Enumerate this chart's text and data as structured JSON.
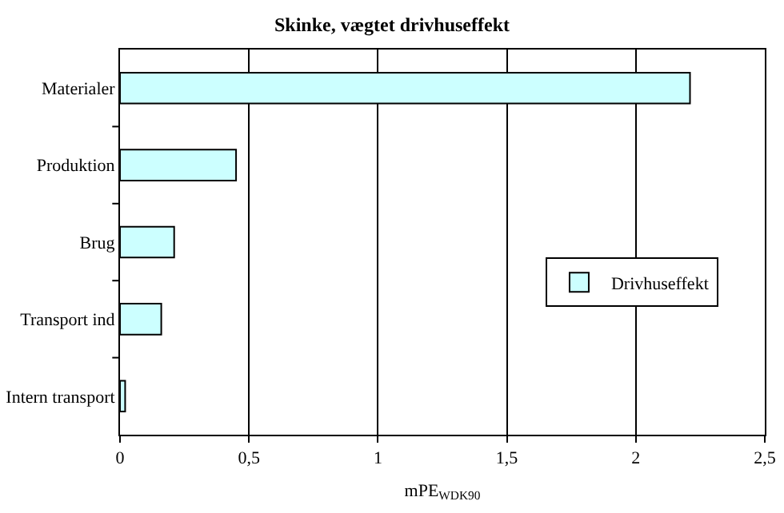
{
  "chart_data": {
    "type": "bar",
    "orientation": "horizontal",
    "title": "Skinke, vægtet drivhuseffekt",
    "xlabel": "mPE$_{WDK90}$",
    "categories": [
      "Materialer",
      "Produktion",
      "Brug",
      "Transport ind",
      "Intern transport"
    ],
    "series": [
      {
        "name": "Drivhuseffekt",
        "color": "#ccffff",
        "values": [
          2.21,
          0.45,
          0.21,
          0.16,
          0.02
        ]
      }
    ],
    "xlim": [
      0,
      2.5
    ],
    "xticks": [
      0,
      {
        "value": 0.5,
        "label": "0,5"
      },
      1,
      {
        "value": 1.5,
        "label": "1,5"
      },
      2,
      {
        "value": 2.5,
        "label": "2,5"
      }
    ],
    "grid": "x",
    "legend": "right"
  }
}
